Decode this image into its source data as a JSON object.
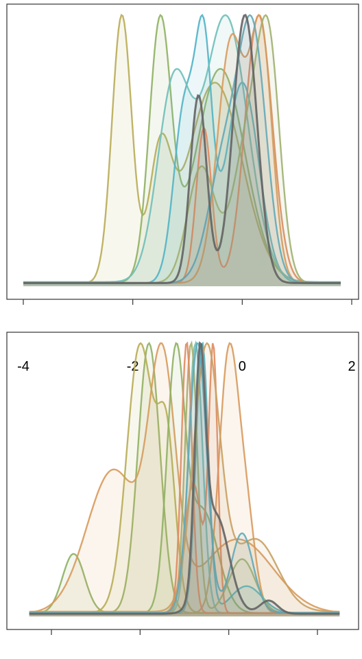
{
  "chart_data": [
    {
      "type": "area",
      "title": "",
      "xlabel": "",
      "ylabel": "",
      "xlim": [
        -4,
        2
      ],
      "ylim": [
        0,
        1
      ],
      "xticks": [
        -4,
        -2,
        0,
        2
      ],
      "tick_labels": [
        "-4",
        "-2",
        "0",
        "2"
      ],
      "grid": false,
      "legend": "none",
      "series": [
        {
          "color": "#b8ac55",
          "peaks": [
            [
              -2.2,
              0.18,
              1.0
            ],
            [
              -1.5,
              0.2,
              0.45
            ],
            [
              -0.5,
              0.5,
              0.75
            ]
          ],
          "range": [
            -4.0,
            1.8
          ]
        },
        {
          "color": "#8fb063",
          "peaks": [
            [
              -1.5,
              0.2,
              0.78
            ],
            [
              -0.4,
              0.45,
              0.65
            ]
          ],
          "range": [
            -4.0,
            1.8
          ]
        },
        {
          "color": "#4fb3c7",
          "peaks": [
            [
              -1.05,
              0.2,
              0.75
            ],
            [
              -0.7,
              0.15,
              0.9
            ],
            [
              0.0,
              0.3,
              0.85
            ]
          ],
          "range": [
            -4.0,
            1.8
          ]
        },
        {
          "color": "#6fbfb8",
          "peaks": [
            [
              -1.25,
              0.3,
              0.55
            ],
            [
              -0.3,
              0.4,
              0.75
            ]
          ],
          "range": [
            -4.0,
            1.8
          ]
        },
        {
          "color": "#e08a60",
          "peaks": [
            [
              -0.7,
              0.14,
              0.55
            ],
            [
              0.3,
              0.25,
              0.95
            ]
          ],
          "range": [
            -4.0,
            1.8
          ]
        },
        {
          "color": "#d89a5c",
          "peaks": [
            [
              -0.2,
              0.25,
              0.9
            ],
            [
              0.35,
              0.2,
              0.9
            ]
          ],
          "range": [
            -4.0,
            1.8
          ]
        },
        {
          "color": "#a0b070",
          "peaks": [
            [
              -0.75,
              0.25,
              0.45
            ],
            [
              0.15,
              0.3,
              0.6
            ],
            [
              0.5,
              0.2,
              0.7
            ]
          ],
          "range": [
            -4.0,
            1.8
          ]
        },
        {
          "color": "#62a8b8",
          "peaks": [
            [
              -0.3,
              0.3,
              0.5
            ],
            [
              0.2,
              0.25,
              0.9
            ]
          ],
          "range": [
            -4.0,
            1.8
          ]
        },
        {
          "color": "#636363",
          "peaks": [
            [
              -0.8,
              0.15,
              0.7
            ],
            [
              0.05,
              0.22,
              1.0
            ]
          ],
          "range": [
            -4.0,
            1.8
          ]
        }
      ]
    },
    {
      "type": "area",
      "title": "",
      "xlabel": "",
      "ylabel": "",
      "xlim": [
        -4,
        2
      ],
      "ylim": [
        0,
        1
      ],
      "xticks": [
        -4,
        -2,
        0,
        2
      ],
      "tick_labels": [],
      "grid": false,
      "legend": "none",
      "series": [
        {
          "color": "#8fb063",
          "peaks": [
            [
              -3.5,
              0.25,
              0.22
            ],
            [
              -1.8,
              0.25,
              1.0
            ]
          ],
          "range": [
            -4.5,
            2.5
          ]
        },
        {
          "color": "#d89a5c",
          "peaks": [
            [
              -2.6,
              0.6,
              0.58
            ],
            [
              -1.5,
              0.3,
              0.95
            ],
            [
              0.2,
              0.8,
              0.3
            ]
          ],
          "range": [
            -4.5,
            2.5
          ]
        },
        {
          "color": "#b8ac55",
          "peaks": [
            [
              -2.0,
              0.3,
              0.9
            ],
            [
              -1.4,
              0.2,
              0.55
            ]
          ],
          "range": [
            -4.5,
            2.5
          ]
        },
        {
          "color": "#d89a5c",
          "peaks": [
            [
              0.0,
              0.22,
              1.0
            ],
            [
              0.4,
              0.2,
              0.35
            ]
          ],
          "range": [
            -4.5,
            2.5
          ]
        },
        {
          "color": "#8fb063",
          "peaks": [
            [
              -1.2,
              0.2,
              0.95
            ],
            [
              -0.6,
              0.35,
              0.4
            ]
          ],
          "range": [
            -4.5,
            2.5
          ]
        },
        {
          "color": "#4fb3c7",
          "peaks": [
            [
              -0.6,
              0.14,
              1.0
            ],
            [
              0.4,
              0.35,
              0.1
            ]
          ],
          "range": [
            -4.5,
            2.5
          ]
        },
        {
          "color": "#6fbfb8",
          "peaks": [
            [
              -0.75,
              0.16,
              0.98
            ]
          ],
          "range": [
            -4.5,
            2.5
          ]
        },
        {
          "color": "#a0b070",
          "peaks": [
            [
              -0.85,
              0.14,
              1.0
            ],
            [
              0.3,
              0.3,
              0.2
            ]
          ],
          "range": [
            -4.5,
            2.5
          ]
        },
        {
          "color": "#e08a60",
          "peaks": [
            [
              -0.35,
              0.1,
              1.0
            ],
            [
              -0.8,
              0.2,
              0.5
            ]
          ],
          "range": [
            -4.5,
            2.5
          ]
        },
        {
          "color": "#e08a60",
          "peaks": [
            [
              -0.95,
              0.12,
              1.0
            ]
          ],
          "range": [
            -4.5,
            2.5
          ]
        },
        {
          "color": "#c9a060",
          "peaks": [
            [
              -0.5,
              0.3,
              0.65
            ],
            [
              0.6,
              0.5,
              0.18
            ]
          ],
          "range": [
            -4.5,
            2.5
          ]
        },
        {
          "color": "#62a8b8",
          "peaks": [
            [
              -0.7,
              0.2,
              0.85
            ],
            [
              0.3,
              0.25,
              0.25
            ]
          ],
          "range": [
            -4.5,
            2.5
          ]
        },
        {
          "color": "#636363",
          "peaks": [
            [
              -0.65,
              0.12,
              1.0
            ],
            [
              -0.3,
              0.3,
              0.45
            ],
            [
              0.9,
              0.2,
              0.06
            ]
          ],
          "range": [
            -4.5,
            2.5
          ]
        }
      ]
    }
  ]
}
